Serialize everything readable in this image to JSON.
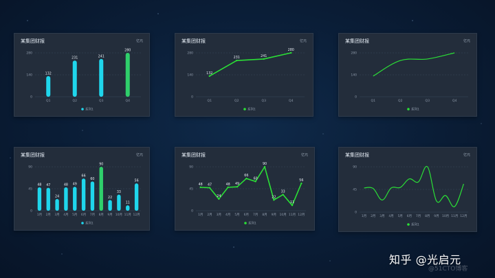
{
  "watermark": "知乎 @光启元",
  "watermark_faint": "@51CTO博客",
  "colors": {
    "bar": "#1fd6ec",
    "bar_highlight": "#2fcf6b",
    "line": "#2be036",
    "grid": "#3b4a5c",
    "axis_text": "#8f9bab",
    "label": "#e9eef4",
    "legend_dot_bar": "#1fd6ec",
    "legend_dot_line": "#2be036"
  },
  "panels": [
    {
      "title": "某集团财报",
      "unit": "亿元",
      "legend": "系列1",
      "chart_data": {
        "type": "bar",
        "categories": [
          "Q1",
          "Q2",
          "Q3",
          "Q4"
        ],
        "series": [
          {
            "name": "系列1",
            "values": [
              132,
              231,
              241,
              280
            ]
          }
        ],
        "highlight_index": 3,
        "yticks": [
          0,
          140,
          280
        ],
        "ylim": [
          0,
          280
        ],
        "data_labels": true
      }
    },
    {
      "title": "某集团财报",
      "unit": "亿元",
      "legend": "系列1",
      "chart_data": {
        "type": "line",
        "categories": [
          "Q1",
          "Q2",
          "Q3",
          "Q4"
        ],
        "series": [
          {
            "name": "系列1",
            "values": [
              132,
              231,
              241,
              280
            ]
          }
        ],
        "yticks": [
          0,
          140,
          280
        ],
        "ylim": [
          0,
          280
        ],
        "data_labels": true,
        "smooth": false
      }
    },
    {
      "title": "某集团财报",
      "unit": "亿元",
      "legend": "系列1",
      "chart_data": {
        "type": "line",
        "categories": [
          "Q1",
          "Q2",
          "Q3",
          "Q4"
        ],
        "series": [
          {
            "name": "系列1",
            "values": [
              132,
              231,
              241,
              280
            ]
          }
        ],
        "yticks": [
          0,
          140,
          280
        ],
        "ylim": [
          0,
          280
        ],
        "data_labels": false,
        "smooth": true
      }
    },
    {
      "title": "某集团财报",
      "unit": "亿元",
      "legend": "系列1",
      "chart_data": {
        "type": "bar",
        "categories": [
          "1月",
          "2月",
          "3月",
          "4月",
          "5月",
          "6月",
          "7月",
          "8月",
          "9月",
          "10月",
          "11月",
          "12月"
        ],
        "series": [
          {
            "name": "系列1",
            "values": [
              48,
              47,
              24,
              48,
              49,
              66,
              60,
              90,
              22,
              33,
              11,
              56
            ]
          }
        ],
        "highlight_index": 7,
        "yticks": [
          0,
          45,
          90
        ],
        "ylim": [
          0,
          90
        ],
        "data_labels": true
      }
    },
    {
      "title": "某集团财报",
      "unit": "亿元",
      "legend": "系列1",
      "chart_data": {
        "type": "line",
        "categories": [
          "1月",
          "2月",
          "3月",
          "4月",
          "5月",
          "6月",
          "7月",
          "8月",
          "9月",
          "10月",
          "11月",
          "12月"
        ],
        "series": [
          {
            "name": "系列1",
            "values": [
              48,
              47,
              24,
              48,
              49,
              66,
              60,
              90,
              22,
              33,
              11,
              56
            ]
          }
        ],
        "yticks": [
          0,
          45,
          90
        ],
        "ylim": [
          0,
          90
        ],
        "data_labels": true,
        "smooth": false
      }
    },
    {
      "title": "某集团财报",
      "unit": "亿元",
      "legend": "系列1",
      "chart_data": {
        "type": "line",
        "categories": [
          "1月",
          "2月",
          "3月",
          "4月",
          "5月",
          "6月",
          "7月",
          "8月",
          "9月",
          "10月",
          "11月",
          "12月"
        ],
        "series": [
          {
            "name": "系列1",
            "values": [
              48,
              47,
              24,
              48,
              49,
              66,
              60,
              90,
              22,
              33,
              11,
              56
            ]
          }
        ],
        "yticks": [
          0,
          45,
          90
        ],
        "ylim": [
          0,
          90
        ],
        "data_labels": false,
        "smooth": true
      }
    }
  ]
}
